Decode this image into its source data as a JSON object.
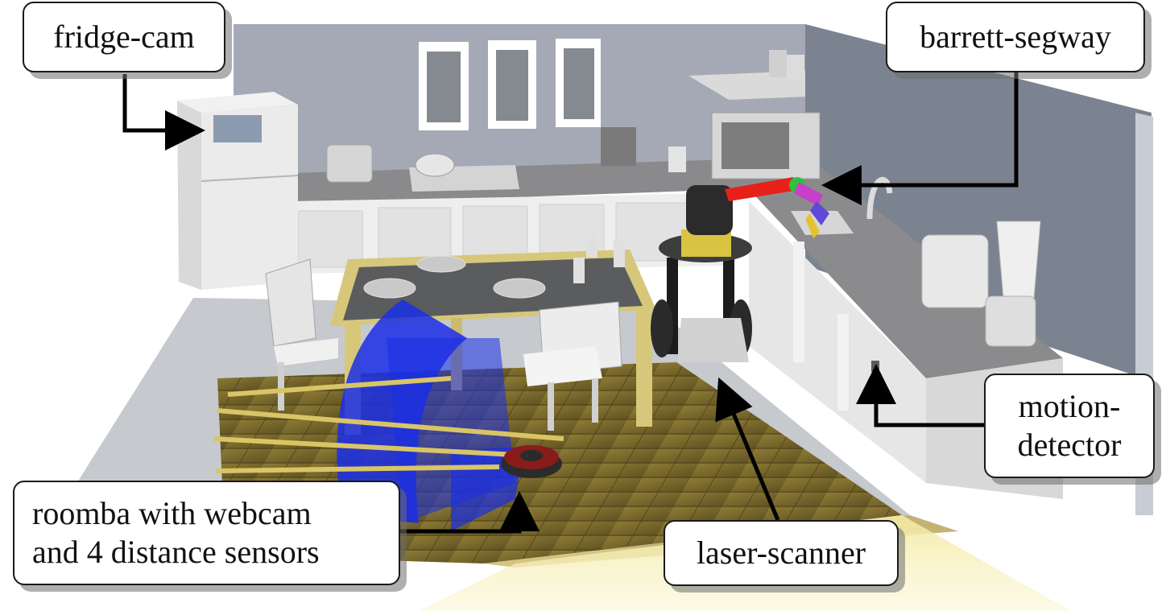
{
  "labels": {
    "fridge_cam": "fridge-cam",
    "barrett_segway": "barrett-segway",
    "motion_detector": [
      "motion-",
      "detector"
    ],
    "laser_scanner": "laser-scanner",
    "roomba": [
      "roomba with webcam",
      "and 4 distance sensors"
    ]
  },
  "colors": {
    "wall": "#a8adb8",
    "wall_right": "#7e8694",
    "floor_grey": "#c9ccd1",
    "wood": "#7a6a2c",
    "counter": "#8e8e8e",
    "cabinet": "#e9e9e9",
    "robot_arm": "#e8201a",
    "scan_beam": "#1a2ee6",
    "light_cone": "#f6f0b4"
  }
}
